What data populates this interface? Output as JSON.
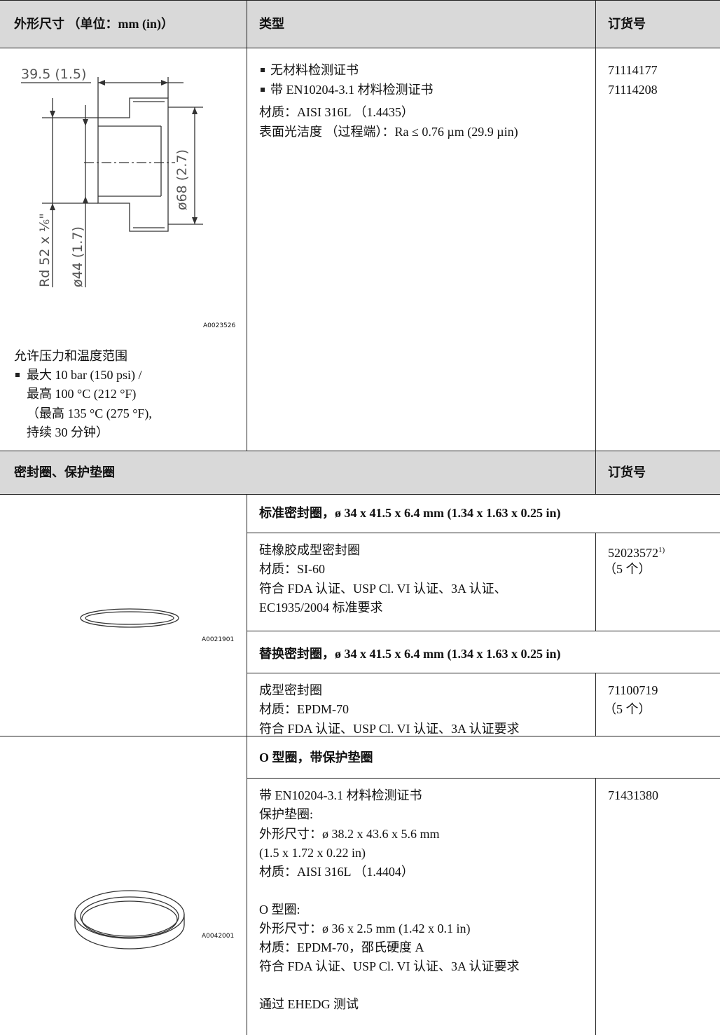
{
  "header": {
    "col1": "外形尺寸 （单位：mm (in)）",
    "col2": "类型",
    "col3": "订货号"
  },
  "housing": {
    "drawing_labels": {
      "length": "39.5 (1.5)",
      "outer": "ø68 (2.7)",
      "thread": "Rd 52 x ⅙\"",
      "inner": "ø44 (1.7)"
    },
    "figure_id": "A0023526",
    "pressure_title": "允许压力和温度范围",
    "pressure_lines": [
      "最大 10 bar (150 psi) /",
      "最高 100 °C (212 °F)",
      "（最高 135 °C (275 °F),",
      "持续 30 分钟）"
    ],
    "types": [
      "无材料检测证书",
      "带 EN10204-3.1 材料检测证书"
    ],
    "material": "材质：AISI 316L （1.4435）",
    "finish": "表面光洁度 （过程端）：Ra ≤ 0.76 µm (29.9 µin)",
    "order_numbers": [
      "71114177",
      "71114208"
    ]
  },
  "seals_header": {
    "title": "密封圈、保护垫圈",
    "order": "订货号"
  },
  "seal_set": {
    "figure_id": "A0021901",
    "items": [
      {
        "heading": "标准密封圈，ø 34 x 41.5 x 6.4 mm (1.34 x 1.63 x 0.25 in)",
        "lines": [
          "硅橡胶成型密封圈",
          "材质：SI-60",
          "符合 FDA 认证、USP Cl. VI 认证、3A 认证、",
          "EC1935/2004 标准要求"
        ],
        "order_number": "52023572",
        "footnote": "1)",
        "quantity": "（5 个）"
      },
      {
        "heading": "替换密封圈，ø 34 x 41.5 x 6.4 mm (1.34 x 1.63 x 0.25 in)",
        "lines": [
          "成型密封圈",
          "材质：EPDM-70",
          "符合 FDA 认证、USP Cl. VI 认证、3A 认证要求"
        ],
        "order_number": "71100719",
        "quantity": "（5 个）"
      }
    ]
  },
  "oring_set": {
    "figure_id": "A0042001",
    "heading": "O 型圈，带保护垫圈",
    "paragraphs": [
      [
        "带 EN10204-3.1 材料检测证书",
        "保护垫圈:",
        "外形尺寸：ø 38.2 x 43.6 x 5.6 mm",
        "(1.5 x 1.72 x 0.22 in)",
        "材质：AISI 316L （1.4404）"
      ],
      [
        "O 型圈:",
        "外形尺寸：ø 36 x 2.5 mm (1.42 x 0.1 in)",
        "材质：EPDM-70，邵氏硬度 A",
        "符合 FDA 认证、USP Cl. VI 认证、3A 认证要求"
      ],
      [
        "通过 EHEDG 测试"
      ]
    ],
    "order_number": "71431380"
  }
}
